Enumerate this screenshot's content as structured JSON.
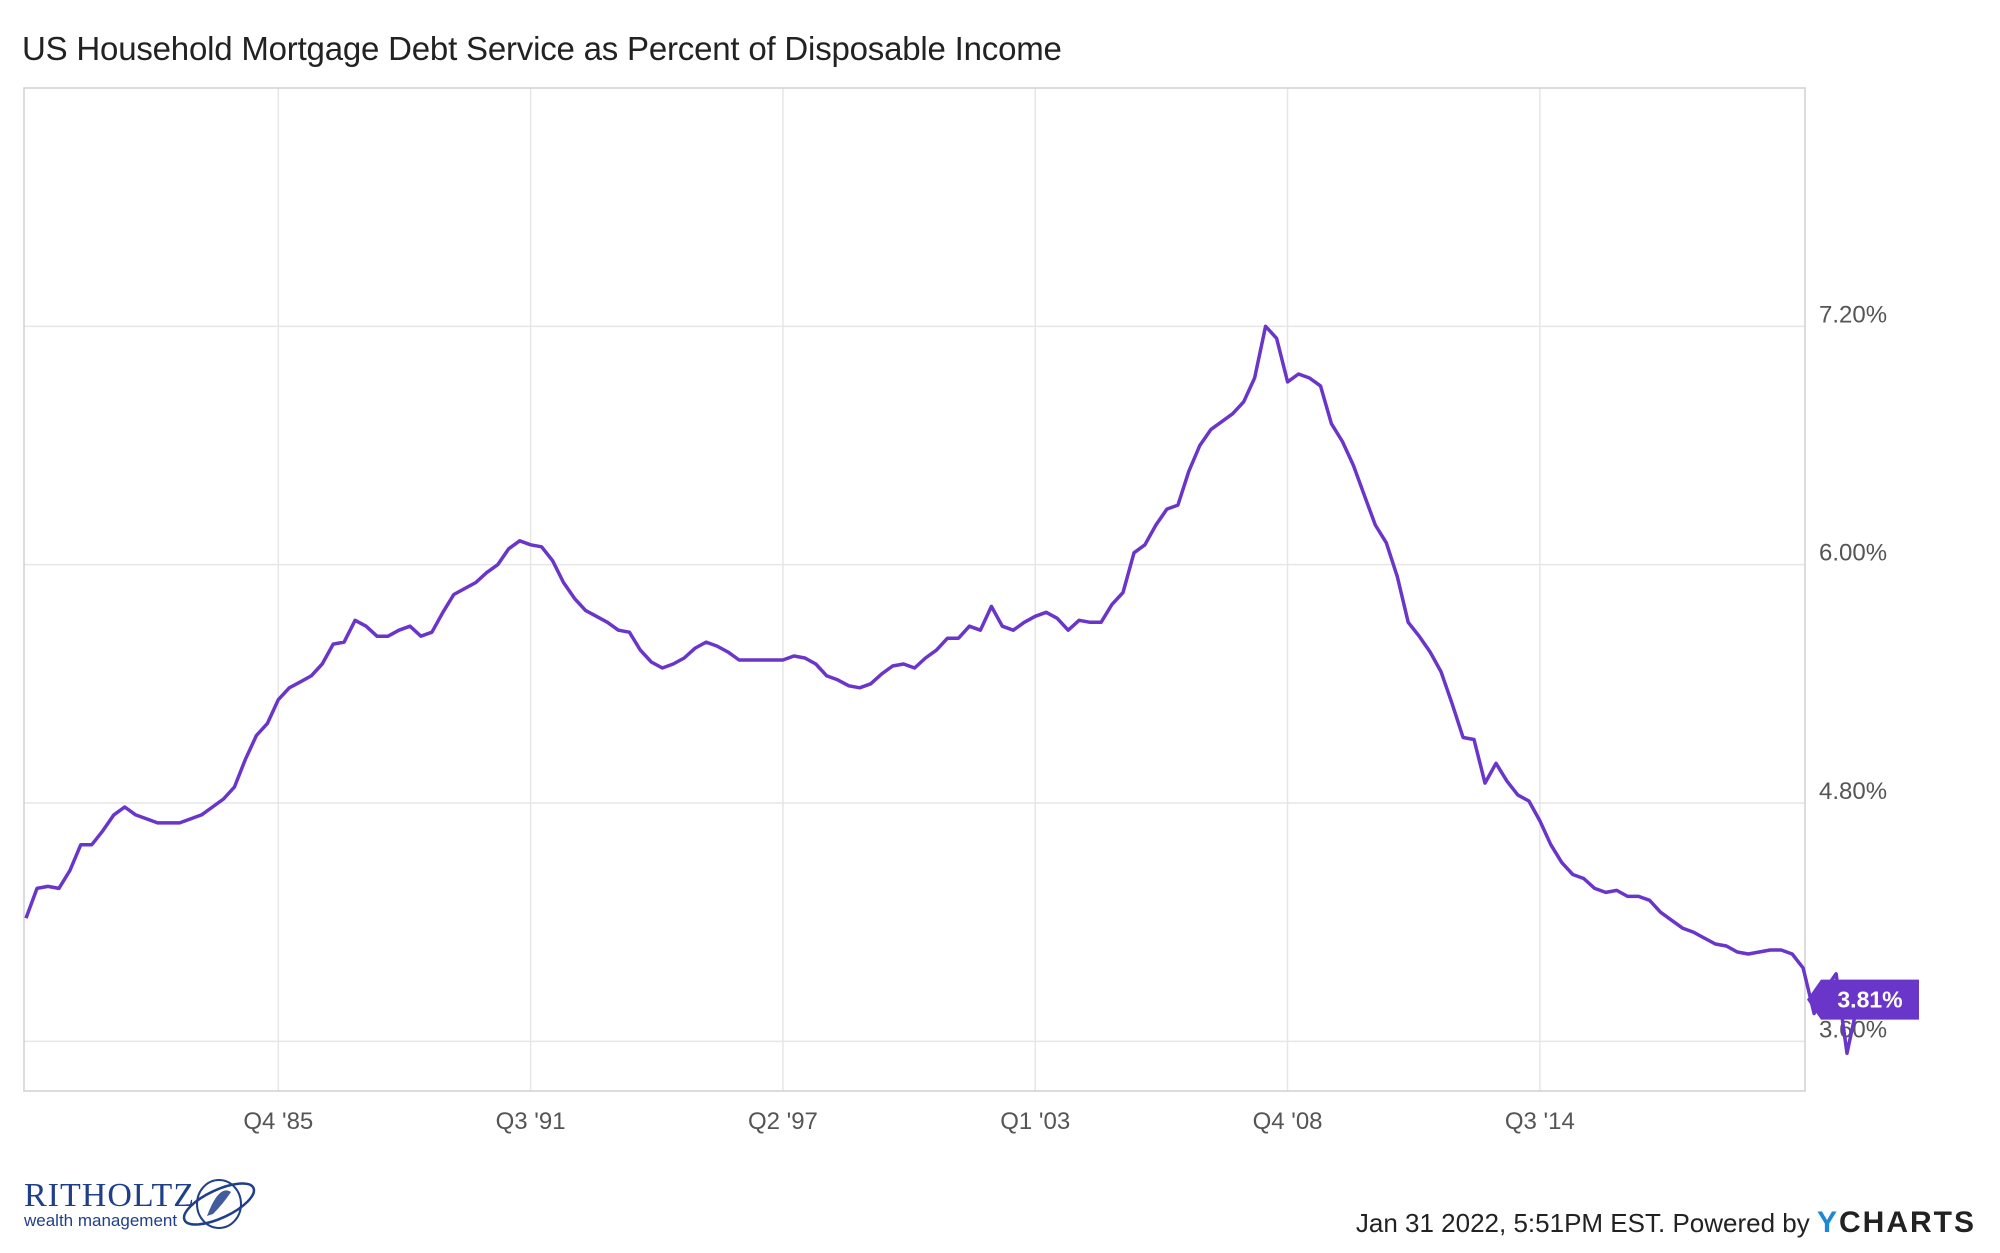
{
  "title": "US Household Mortgage Debt Service as Percent of Disposable Income",
  "footer": {
    "timestamp": "Jan 31 2022, 5:51PM EST.",
    "powered_by": "Powered by",
    "brand": "YCHARTS"
  },
  "logo": {
    "name": "RITHOLTZ",
    "tagline": "wealth management"
  },
  "colors": {
    "line": "#6a35c9",
    "grid": "#e6e6e6",
    "tick": "#555555",
    "badge_bg": "#6a35c9",
    "badge_text": "#ffffff"
  },
  "chart_data": {
    "type": "line",
    "title": "US Household Mortgage Debt Service as Percent of Disposable Income",
    "xlabel": "",
    "ylabel": "",
    "x_start": "Q1 1980",
    "x_ticks": [
      "Q4 '85",
      "Q3 '91",
      "Q2 '97",
      "Q1 '03",
      "Q4 '08",
      "Q3 '14"
    ],
    "y_ticks": [
      "3.60%",
      "4.80%",
      "6.00%",
      "7.20%"
    ],
    "ylim": [
      3.35,
      8.4
    ],
    "grid": true,
    "axis_side": "right",
    "last_value_label": "3.81%",
    "series": [
      {
        "values": [
          4.22,
          4.37,
          4.38,
          4.37,
          4.46,
          4.59,
          4.59,
          4.66,
          4.74,
          4.78,
          4.74,
          4.72,
          4.7,
          4.7,
          4.7,
          4.72,
          4.74,
          4.78,
          4.82,
          4.88,
          5.02,
          5.14,
          5.2,
          5.32,
          5.38,
          5.41,
          5.44,
          5.5,
          5.6,
          5.61,
          5.72,
          5.69,
          5.64,
          5.64,
          5.67,
          5.69,
          5.64,
          5.66,
          5.76,
          5.85,
          5.88,
          5.91,
          5.96,
          6.0,
          6.08,
          6.12,
          6.1,
          6.09,
          6.02,
          5.91,
          5.83,
          5.77,
          5.74,
          5.71,
          5.67,
          5.66,
          5.57,
          5.51,
          5.48,
          5.5,
          5.53,
          5.58,
          5.61,
          5.59,
          5.56,
          5.52,
          5.52,
          5.52,
          5.52,
          5.52,
          5.54,
          5.53,
          5.5,
          5.44,
          5.42,
          5.39,
          5.38,
          5.4,
          5.45,
          5.49,
          5.5,
          5.48,
          5.53,
          5.57,
          5.63,
          5.63,
          5.69,
          5.67,
          5.79,
          5.69,
          5.67,
          5.71,
          5.74,
          5.76,
          5.73,
          5.67,
          5.72,
          5.71,
          5.71,
          5.8,
          5.86,
          6.06,
          6.1,
          6.2,
          6.28,
          6.3,
          6.47,
          6.6,
          6.68,
          6.72,
          6.76,
          6.82,
          6.94,
          7.2,
          7.14,
          6.92,
          6.96,
          6.94,
          6.9,
          6.71,
          6.62,
          6.5,
          6.35,
          6.2,
          6.11,
          5.94,
          5.71,
          5.64,
          5.56,
          5.46,
          5.3,
          5.13,
          5.12,
          4.9,
          5.0,
          4.91,
          4.84,
          4.81,
          4.71,
          4.59,
          4.5,
          4.44,
          4.42,
          4.37,
          4.35,
          4.36,
          4.33,
          4.33,
          4.31,
          4.25,
          4.21,
          4.17,
          4.15,
          4.12,
          4.09,
          4.08,
          4.05,
          4.04,
          4.05,
          4.06,
          4.06,
          4.04,
          3.97,
          3.74,
          3.86,
          3.94,
          3.54,
          3.8,
          3.81
        ]
      }
    ]
  }
}
